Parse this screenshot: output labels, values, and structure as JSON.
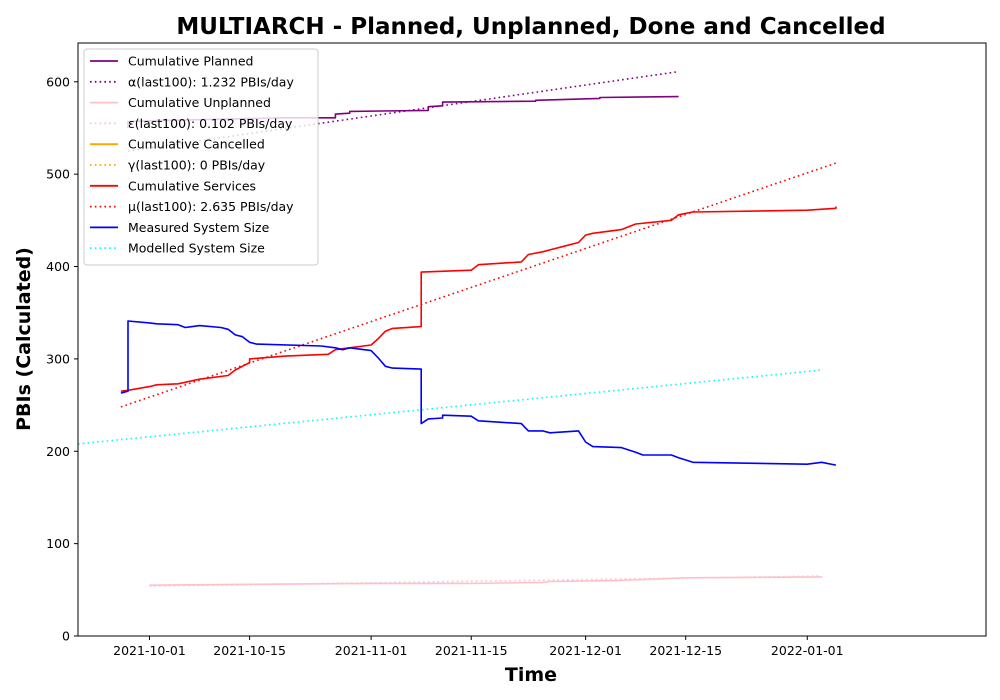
{
  "chart_data": {
    "type": "line",
    "title": "MULTIARCH - Planned, Unplanned, Done  and Cancelled",
    "xlabel": "Time",
    "ylabel": "PBIs (Calculated)",
    "xlim": [
      "2021-09-21",
      "2022-01-26"
    ],
    "ylim": [
      0,
      642
    ],
    "x_ticks": [
      "2021-10-01",
      "2021-10-15",
      "2021-11-01",
      "2021-11-15",
      "2021-12-01",
      "2021-12-15",
      "2022-01-01"
    ],
    "y_ticks": [
      0,
      100,
      200,
      300,
      400,
      500,
      600
    ],
    "grid": false,
    "legend_position": "top-left",
    "series": [
      {
        "name": "Cumulative Planned",
        "color": "#800080",
        "style": "solid",
        "points": [
          [
            "2021-09-28",
            550
          ],
          [
            "2021-09-28",
            557
          ],
          [
            "2021-10-02",
            558
          ],
          [
            "2021-10-08",
            559
          ],
          [
            "2021-10-20",
            561
          ],
          [
            "2021-10-27",
            561
          ],
          [
            "2021-10-27",
            565
          ],
          [
            "2021-10-29",
            566
          ],
          [
            "2021-10-29",
            568
          ],
          [
            "2021-11-09",
            569
          ],
          [
            "2021-11-09",
            573
          ],
          [
            "2021-11-11",
            574
          ],
          [
            "2021-11-11",
            578
          ],
          [
            "2021-11-24",
            579
          ],
          [
            "2021-11-24",
            580
          ],
          [
            "2021-12-03",
            582
          ],
          [
            "2021-12-03",
            583
          ],
          [
            "2021-12-14",
            584
          ]
        ]
      },
      {
        "name": "α(last100): 1.232 PBIs/day",
        "color": "#800080",
        "style": "dotted",
        "points": [
          [
            "2021-09-28",
            525
          ],
          [
            "2021-12-14",
            611
          ]
        ]
      },
      {
        "name": "Cumulative Unplanned",
        "color": "#ffc0cb",
        "style": "solid",
        "points": [
          [
            "2021-10-01",
            55
          ],
          [
            "2021-10-15",
            56
          ],
          [
            "2021-11-01",
            57
          ],
          [
            "2021-11-15",
            57
          ],
          [
            "2021-11-25",
            58
          ],
          [
            "2021-11-26",
            59
          ],
          [
            "2021-12-05",
            60
          ],
          [
            "2021-12-15",
            63
          ],
          [
            "2022-01-03",
            64
          ],
          [
            "2022-01-03",
            65
          ]
        ]
      },
      {
        "name": "ε(last100): 0.102 PBIs/day",
        "color": "#ffc0cb",
        "style": "dotted",
        "points": [
          [
            "2021-10-01",
            54
          ],
          [
            "2022-01-03",
            65
          ]
        ]
      },
      {
        "name": "Cumulative Cancelled",
        "color": "#ffa500",
        "style": "solid",
        "points": []
      },
      {
        "name": "γ(last100): 0 PBIs/day",
        "color": "#ffa500",
        "style": "dotted",
        "points": []
      },
      {
        "name": "Cumulative Services",
        "color": "#ff0000",
        "style": "solid",
        "points": [
          [
            "2021-09-27",
            265
          ],
          [
            "2021-09-28",
            266
          ],
          [
            "2021-10-01",
            270
          ],
          [
            "2021-10-02",
            272
          ],
          [
            "2021-10-05",
            273
          ],
          [
            "2021-10-08",
            278
          ],
          [
            "2021-10-12",
            282
          ],
          [
            "2021-10-13",
            288
          ],
          [
            "2021-10-14",
            292
          ],
          [
            "2021-10-15",
            296
          ],
          [
            "2021-10-15",
            300
          ],
          [
            "2021-10-20",
            303
          ],
          [
            "2021-10-26",
            305
          ],
          [
            "2021-10-27",
            310
          ],
          [
            "2021-10-29",
            312
          ],
          [
            "2021-11-01",
            315
          ],
          [
            "2021-11-02",
            322
          ],
          [
            "2021-11-03",
            330
          ],
          [
            "2021-11-04",
            333
          ],
          [
            "2021-11-08",
            335
          ],
          [
            "2021-11-08",
            394
          ],
          [
            "2021-11-15",
            396
          ],
          [
            "2021-11-16",
            402
          ],
          [
            "2021-11-22",
            405
          ],
          [
            "2021-11-23",
            413
          ],
          [
            "2021-11-25",
            416
          ],
          [
            "2021-11-26",
            418
          ],
          [
            "2021-11-28",
            422
          ],
          [
            "2021-11-30",
            426
          ],
          [
            "2021-12-01",
            434
          ],
          [
            "2021-12-02",
            436
          ],
          [
            "2021-12-06",
            440
          ],
          [
            "2021-12-08",
            446
          ],
          [
            "2021-12-13",
            450
          ],
          [
            "2021-12-14",
            456
          ],
          [
            "2021-12-16",
            459
          ],
          [
            "2022-01-01",
            461
          ],
          [
            "2022-01-05",
            463
          ],
          [
            "2022-01-05",
            465
          ]
        ]
      },
      {
        "name": "μ(last100): 2.635 PBIs/day",
        "color": "#ff0000",
        "style": "dotted",
        "points": [
          [
            "2021-09-27",
            248
          ],
          [
            "2022-01-05",
            512
          ]
        ]
      },
      {
        "name": "Measured System Size",
        "color": "#0000ff",
        "style": "solid",
        "points": [
          [
            "2021-09-27",
            263
          ],
          [
            "2021-09-28",
            265
          ],
          [
            "2021-09-28",
            341
          ],
          [
            "2021-10-01",
            339
          ],
          [
            "2021-10-02",
            338
          ],
          [
            "2021-10-05",
            337
          ],
          [
            "2021-10-06",
            334
          ],
          [
            "2021-10-07",
            335
          ],
          [
            "2021-10-08",
            336
          ],
          [
            "2021-10-11",
            334
          ],
          [
            "2021-10-12",
            332
          ],
          [
            "2021-10-13",
            326
          ],
          [
            "2021-10-14",
            324
          ],
          [
            "2021-10-15",
            318
          ],
          [
            "2021-10-16",
            316
          ],
          [
            "2021-10-25",
            314
          ],
          [
            "2021-10-27",
            312
          ],
          [
            "2021-10-28",
            310
          ],
          [
            "2021-10-29",
            312
          ],
          [
            "2021-11-01",
            309
          ],
          [
            "2021-11-02",
            301
          ],
          [
            "2021-11-03",
            292
          ],
          [
            "2021-11-04",
            290
          ],
          [
            "2021-11-08",
            289
          ],
          [
            "2021-11-08",
            230
          ],
          [
            "2021-11-09",
            235
          ],
          [
            "2021-11-11",
            236
          ],
          [
            "2021-11-11",
            239
          ],
          [
            "2021-11-15",
            238
          ],
          [
            "2021-11-16",
            233
          ],
          [
            "2021-11-22",
            230
          ],
          [
            "2021-11-23",
            222
          ],
          [
            "2021-11-25",
            222
          ],
          [
            "2021-11-26",
            220
          ],
          [
            "2021-11-30",
            222
          ],
          [
            "2021-12-01",
            210
          ],
          [
            "2021-12-02",
            205
          ],
          [
            "2021-12-06",
            204
          ],
          [
            "2021-12-08",
            199
          ],
          [
            "2021-12-09",
            196
          ],
          [
            "2021-12-13",
            196
          ],
          [
            "2021-12-14",
            193
          ],
          [
            "2021-12-16",
            188
          ],
          [
            "2022-01-01",
            186
          ],
          [
            "2022-01-03",
            188
          ],
          [
            "2022-01-05",
            185
          ]
        ]
      },
      {
        "name": "Modelled System Size",
        "color": "#00ffff",
        "style": "dotted",
        "points": [
          [
            "2021-09-21",
            208
          ],
          [
            "2022-01-03",
            288
          ]
        ]
      }
    ]
  }
}
